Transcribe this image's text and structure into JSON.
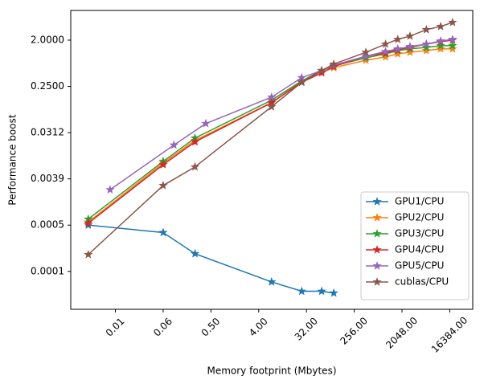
{
  "chart_data": {
    "type": "line",
    "x_label": "Memory footprint (Mbytes)",
    "y_label": "Performance boost",
    "xscale": "log2",
    "yscale": "log2",
    "xlim": [
      0.00112,
      44500
    ],
    "ylim": [
      1.11e-05,
      7.6
    ],
    "xticks": [
      {
        "value": 0.0078125,
        "label": "0.01"
      },
      {
        "value": 0.0625,
        "label": "0.06"
      },
      {
        "value": 0.5,
        "label": "0.50"
      },
      {
        "value": 4,
        "label": "4.00"
      },
      {
        "value": 32,
        "label": "32.00"
      },
      {
        "value": 256,
        "label": "256.00"
      },
      {
        "value": 2048,
        "label": "2048.00"
      },
      {
        "value": 16384,
        "label": "16384.00"
      }
    ],
    "yticks": [
      {
        "value": 2,
        "label": "2.0000"
      },
      {
        "value": 0.25,
        "label": "0.2500"
      },
      {
        "value": 0.03125,
        "label": "0.0312"
      },
      {
        "value": 0.00390625,
        "label": "0.0039"
      },
      {
        "value": 0.00048828125,
        "label": "0.0005"
      },
      {
        "value": 6.103515625e-05,
        "label": "0.0001"
      }
    ],
    "legend": "lower right",
    "series": [
      {
        "name": "GPU1/CPU",
        "color": "#1f77b4",
        "x": [
          0.0024,
          0.0625,
          0.25,
          7,
          26,
          62,
          105
        ],
        "values": [
          0.00049,
          0.00035,
          0.000135,
          3.8e-05,
          2.5e-05,
          2.5e-05,
          2.3e-05
        ]
      },
      {
        "name": "GPU2/CPU",
        "color": "#ff7f0e",
        "x": [
          0.0024,
          0.0625,
          0.25,
          7,
          26,
          62,
          105,
          425,
          1000,
          1700,
          2900,
          5900,
          11000,
          18500
        ],
        "values": [
          0.00056,
          0.008,
          0.022,
          0.12,
          0.31,
          0.47,
          0.58,
          0.81,
          0.94,
          1.08,
          1.16,
          1.25,
          1.35,
          1.35
        ]
      },
      {
        "name": "GPU3/CPU",
        "color": "#2ca02c",
        "x": [
          0.0024,
          0.0625,
          0.25,
          7,
          26,
          62,
          105,
          425,
          1000,
          1700,
          2900,
          5900,
          11000,
          18500
        ],
        "values": [
          0.00064,
          0.0086,
          0.0245,
          0.134,
          0.32,
          0.51,
          0.63,
          0.9,
          1.08,
          1.25,
          1.35,
          1.44,
          1.56,
          1.56
        ]
      },
      {
        "name": "GPU4/CPU",
        "color": "#d62728",
        "x": [
          0.0024,
          0.0625,
          0.25,
          7,
          26,
          62,
          105,
          425,
          1000,
          1700,
          2900,
          5900,
          11000,
          18500
        ],
        "values": [
          0.00053,
          0.0074,
          0.0206,
          0.12,
          0.3,
          0.46,
          0.61,
          0.97,
          1.12,
          1.3,
          1.44,
          1.67,
          1.87,
          2
        ]
      },
      {
        "name": "GPU5/CPU",
        "color": "#9467bd",
        "x": [
          0.0062,
          0.1,
          0.4,
          7,
          26,
          62,
          105,
          425,
          1000,
          1700,
          2900,
          5900,
          11000,
          18500
        ],
        "values": [
          0.0024,
          0.0179,
          0.047,
          0.154,
          0.37,
          0.51,
          0.65,
          0.97,
          1.2,
          1.35,
          1.5,
          1.67,
          1.93,
          2.07
        ]
      },
      {
        "name": "cublas/CPU",
        "color": "#8c564b",
        "x": [
          0.0024,
          0.0625,
          0.25,
          7,
          26,
          62,
          105,
          425,
          1000,
          1700,
          2900,
          5900,
          11000,
          18500
        ],
        "values": [
          0.00013,
          0.0029,
          0.0067,
          0.1,
          0.3,
          0.51,
          0.68,
          1.16,
          1.67,
          2.07,
          2.4,
          3.2,
          3.7,
          4.44
        ]
      }
    ]
  }
}
